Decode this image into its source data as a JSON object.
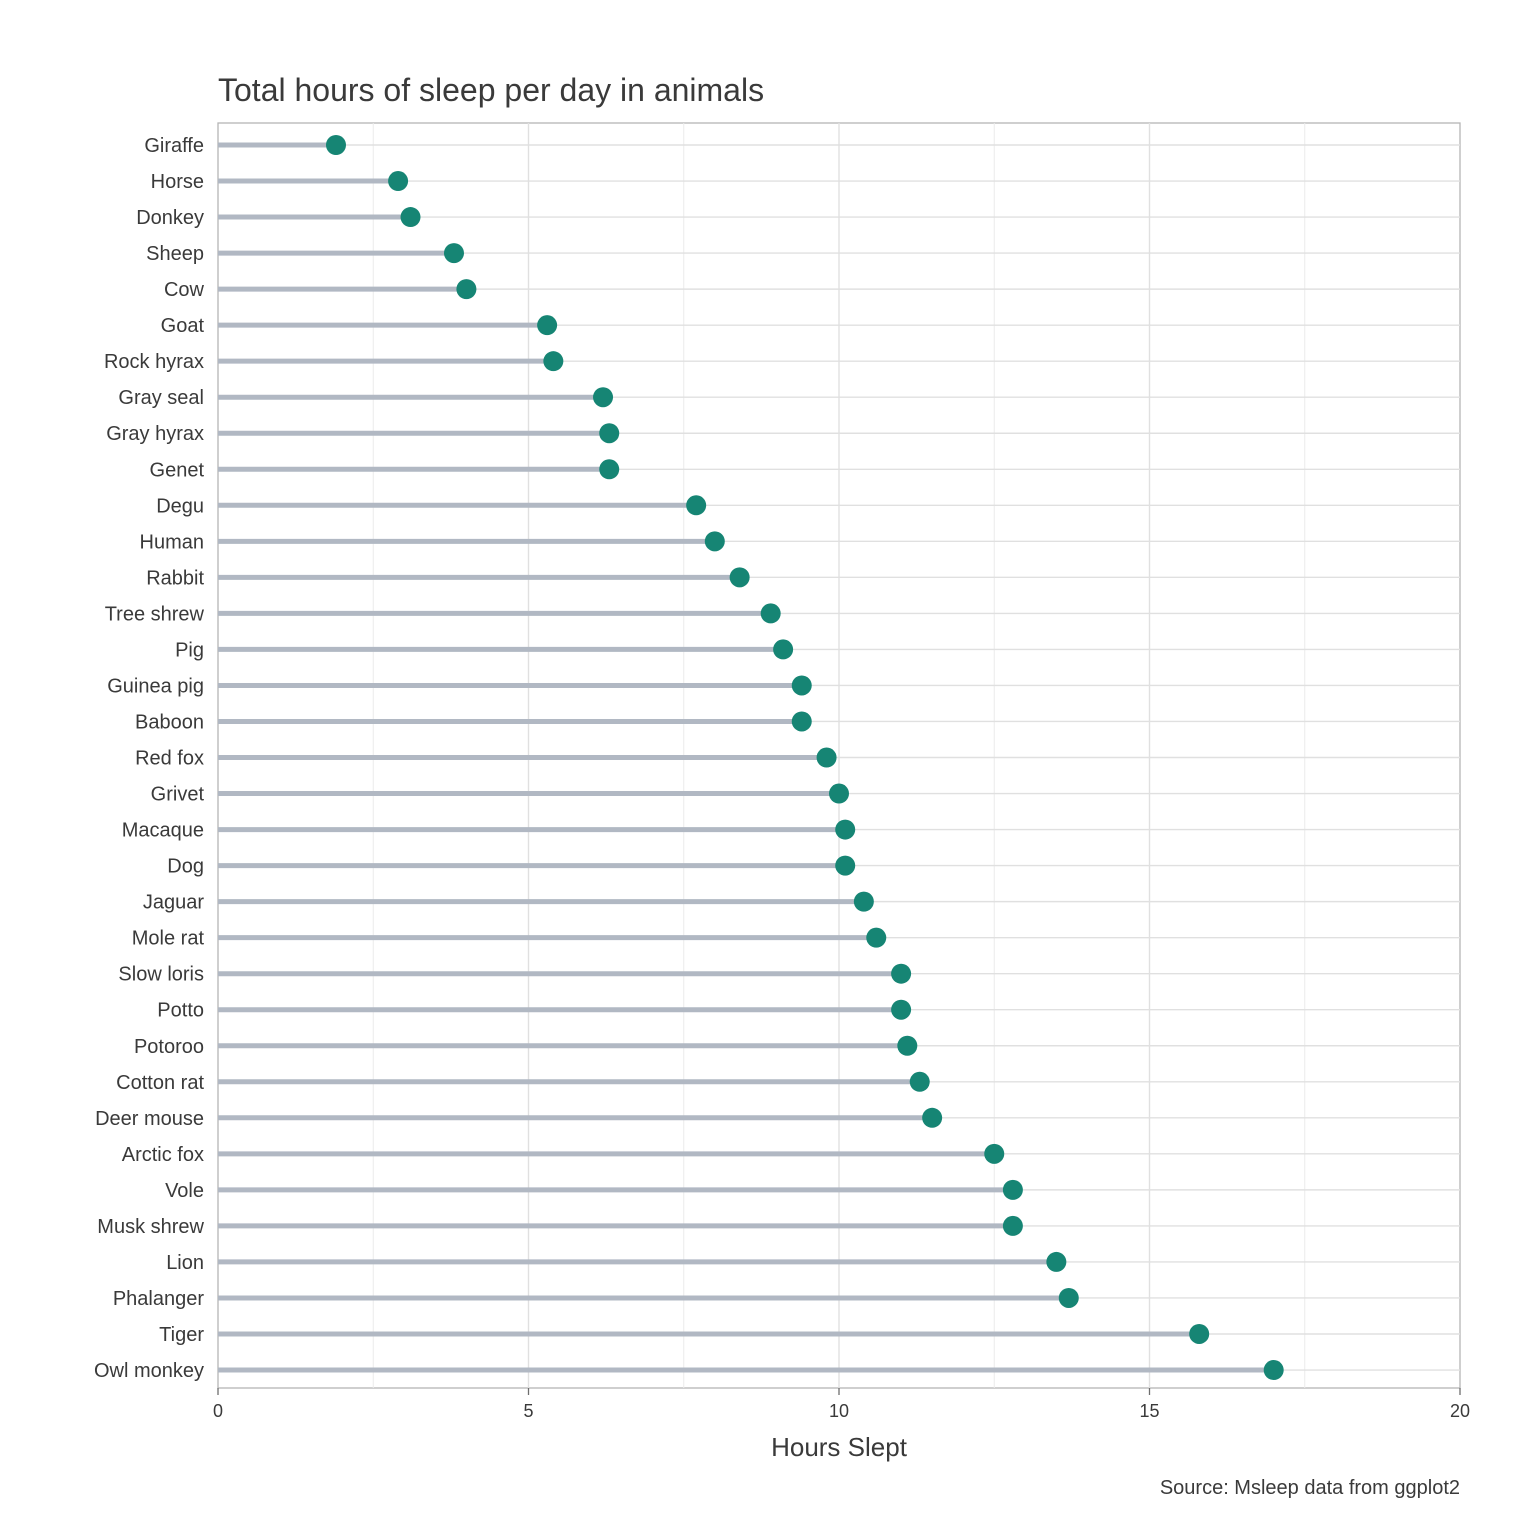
{
  "chart_data": {
    "type": "lollipop",
    "title": "Total hours of sleep per day in animals",
    "xlabel": "Hours Slept",
    "ylabel": "",
    "caption": "Source: Msleep data from ggplot2",
    "xlim": [
      0,
      20
    ],
    "xticks": [
      0,
      5,
      10,
      15,
      20
    ],
    "grid": true,
    "orientation": "horizontal",
    "colors": {
      "point": "#168574",
      "stem": "#b1b8c3",
      "grid": "#e0e0e0",
      "panel_border": "#b5b5b5"
    },
    "categories": [
      "Giraffe",
      "Horse",
      "Donkey",
      "Sheep",
      "Cow",
      "Goat",
      "Rock hyrax",
      "Gray seal",
      "Gray hyrax",
      "Genet",
      "Degu",
      "Human",
      "Rabbit",
      "Tree shrew",
      "Pig",
      "Guinea pig",
      "Baboon",
      "Red fox",
      "Grivet",
      "Macaque",
      "Dog",
      "Jaguar",
      "Mole rat",
      "Slow loris",
      "Potto",
      "Potoroo",
      "Cotton rat",
      "Deer mouse",
      "Arctic fox",
      "Vole ",
      "Musk shrew",
      "Lion",
      "Phalanger",
      "Tiger",
      "Owl monkey"
    ],
    "values": [
      1.9,
      2.9,
      3.1,
      3.8,
      4.0,
      5.3,
      5.4,
      6.2,
      6.3,
      6.3,
      7.7,
      8.0,
      8.4,
      8.9,
      9.1,
      9.4,
      9.4,
      9.8,
      10.0,
      10.1,
      10.1,
      10.4,
      10.6,
      11.0,
      11.0,
      11.1,
      11.3,
      11.5,
      12.5,
      12.8,
      12.8,
      13.5,
      13.7,
      15.8,
      17.0
    ]
  }
}
